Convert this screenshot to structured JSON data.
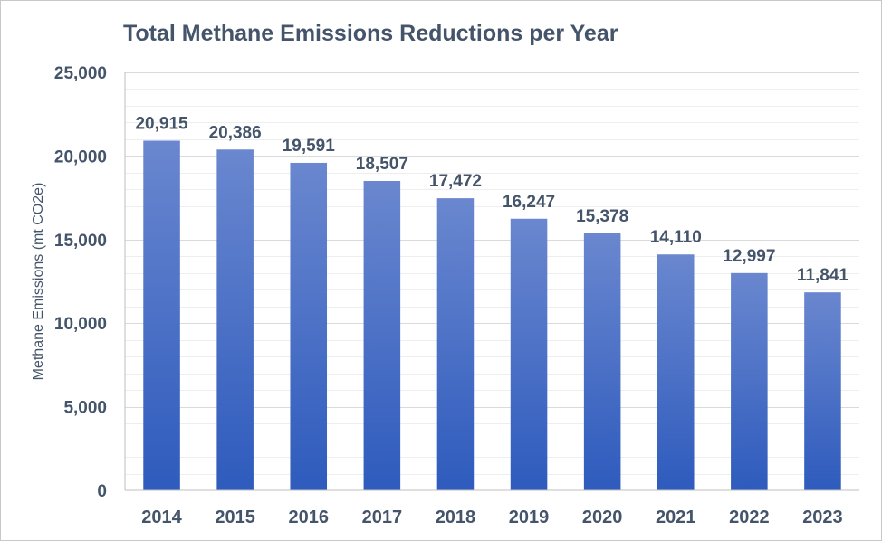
{
  "chart_data": {
    "type": "bar",
    "title": "Total Methane Emissions Reductions per Year",
    "xlabel": "",
    "ylabel": "Methane Emissions (mt CO2e)",
    "categories": [
      "2014",
      "2015",
      "2016",
      "2017",
      "2018",
      "2019",
      "2020",
      "2021",
      "2022",
      "2023"
    ],
    "values": [
      20915,
      20386,
      19591,
      18507,
      17472,
      16247,
      15378,
      14110,
      12997,
      11841
    ],
    "value_labels": [
      "20,915",
      "20,386",
      "19,591",
      "18,507",
      "17,472",
      "16,247",
      "15,378",
      "14,110",
      "12,997",
      "11,841"
    ],
    "ylim": [
      0,
      25000
    ],
    "yticks": [
      0,
      5000,
      10000,
      15000,
      20000,
      25000
    ],
    "ytick_labels": [
      "0",
      "5,000",
      "10,000",
      "15,000",
      "20,000",
      "25,000"
    ],
    "minor_step": 1000,
    "grid": true,
    "legend": "none",
    "bar_color_top": "#6a87cf",
    "bar_color_bottom": "#2e5bbd"
  }
}
